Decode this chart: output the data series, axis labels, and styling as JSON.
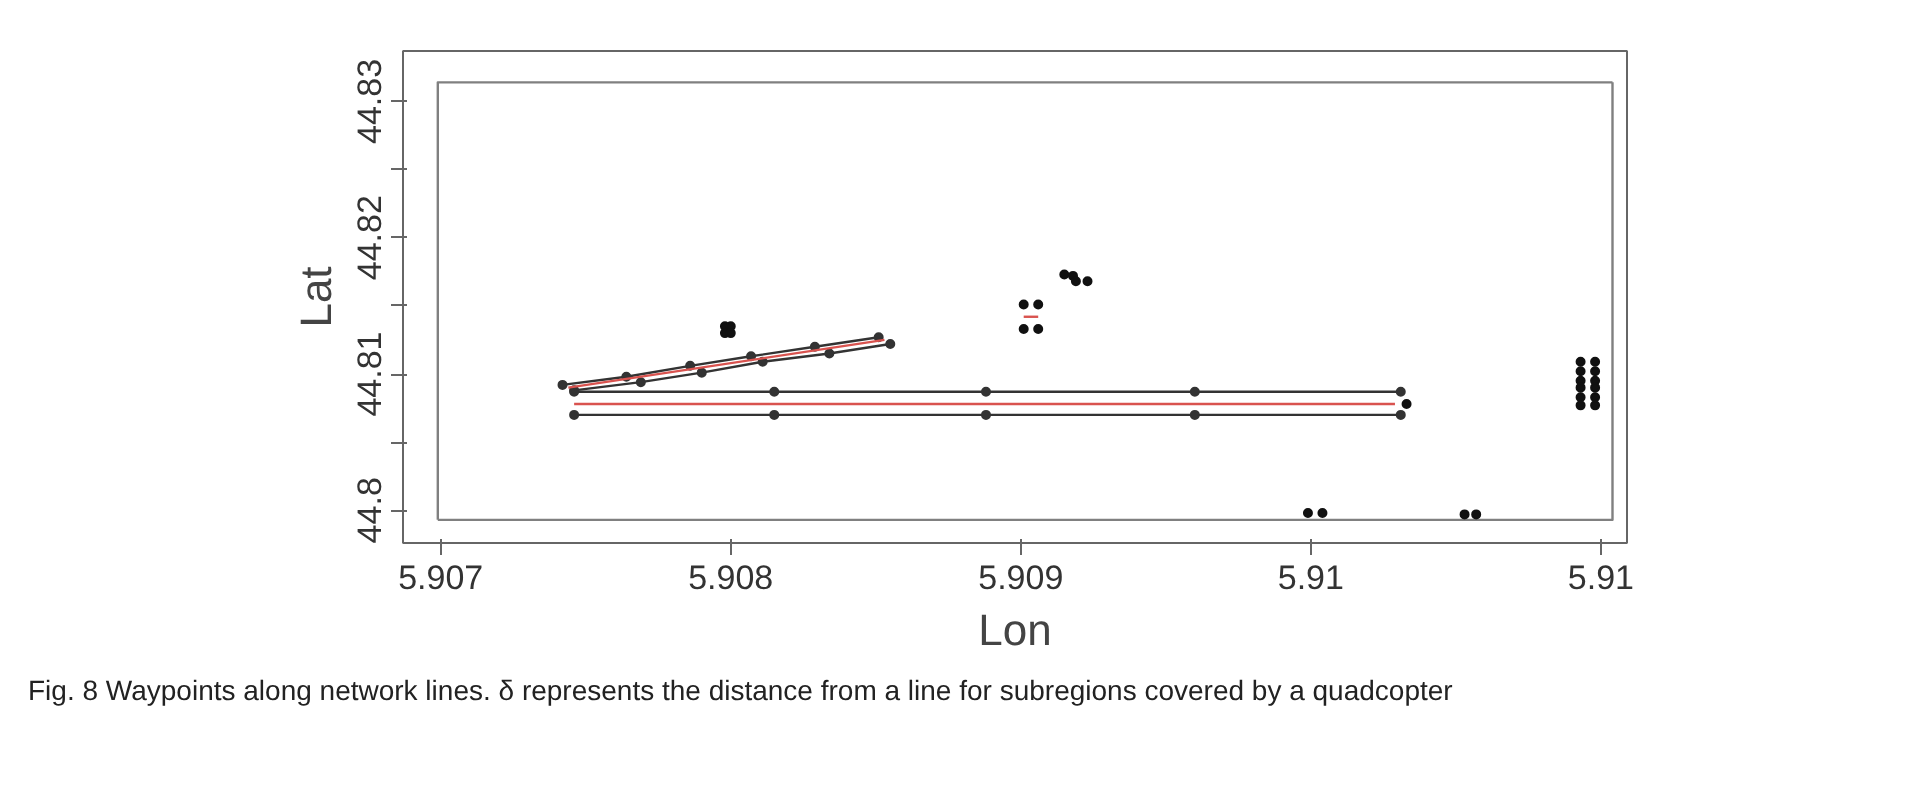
{
  "chart_data": {
    "type": "line",
    "xlabel": "Lon",
    "ylabel": "Lat",
    "xlim": [
      5.90687,
      5.91109
    ],
    "ylim": [
      44.7976,
      44.8337
    ],
    "xticks": [
      5.907,
      5.908,
      5.909,
      5.91,
      {
        "value": 5.911,
        "label": "5.91"
      }
    ],
    "yticks": [
      {
        "value": 44.8,
        "label": "44.8"
      },
      {
        "value": 44.805,
        "label": null
      },
      44.81,
      {
        "value": 44.815,
        "label": null
      },
      44.82,
      {
        "value": 44.825,
        "label": null
      },
      44.83
    ],
    "grid": false,
    "annotations": [
      "Fig. 8  Waypoints along network lines. δ represents the distance from a line for subregions covered by a quadcopter"
    ],
    "series": [
      {
        "color": "#808080",
        "marker": "none",
        "x": [
          5.90699,
          5.91104,
          5.91104
        ],
        "values": [
          44.7993,
          44.7993,
          44.8314
        ]
      },
      {
        "color": "#808080",
        "marker": "none",
        "x": [
          5.90699,
          5.90699,
          5.91104
        ],
        "values": [
          44.7993,
          44.8314,
          44.8314
        ]
      },
      {
        "color": "#333333",
        "marker": "circle",
        "x": [
          5.90746,
          5.90815,
          5.90888,
          5.9096,
          5.91031
        ],
        "values": [
          44.8087,
          44.8087,
          44.8087,
          44.8087,
          44.8087
        ]
      },
      {
        "color": "#333333",
        "marker": "circle",
        "x": [
          5.90746,
          5.90815,
          5.90888,
          5.9096,
          5.91031
        ],
        "values": [
          44.807,
          44.807,
          44.807,
          44.807,
          44.807
        ]
      },
      {
        "color": "#d9534f",
        "marker": "none",
        "x": [
          5.90746,
          5.91029
        ],
        "values": [
          44.8078,
          44.8078
        ]
      },
      {
        "color": "#333333",
        "marker": "circle",
        "x": [
          5.90742,
          5.90764,
          5.90786,
          5.90807,
          5.90829,
          5.90851
        ],
        "values": [
          44.8092,
          44.8098,
          44.8106,
          44.8113,
          44.812,
          44.8127
        ]
      },
      {
        "color": "#333333",
        "marker": "circle",
        "x": [
          5.90746,
          5.90769,
          5.9079,
          5.90811,
          5.90834,
          5.90855
        ],
        "values": [
          44.8088,
          44.8094,
          44.8101,
          44.8109,
          44.8115,
          44.8122
        ]
      },
      {
        "color": "#d9534f",
        "marker": "none",
        "x": [
          5.90744,
          5.90853
        ],
        "values": [
          44.809,
          44.8125
        ]
      },
      {
        "color": "#d9534f",
        "marker": "none",
        "x": [
          5.90901,
          5.90906
        ],
        "values": [
          44.8142,
          44.8142
        ]
      },
      {
        "type": "scatter",
        "color": "#111111",
        "marker": "circle",
        "x": [
          5.90798,
          5.908,
          5.90798,
          5.908,
          5.90901,
          5.90906,
          5.90901,
          5.90906,
          5.90915,
          5.90918,
          5.90919,
          5.90923,
          5.91033,
          5.90999,
          5.91004,
          5.91053,
          5.91057,
          5.91093,
          5.91093,
          5.91093,
          5.91093,
          5.91093,
          5.91093,
          5.91098,
          5.91098,
          5.91098,
          5.91098,
          5.91098,
          5.91098
        ],
        "values": [
          44.8135,
          44.8135,
          44.813,
          44.813,
          44.8151,
          44.8151,
          44.8133,
          44.8133,
          44.8173,
          44.8172,
          44.8168,
          44.8168,
          44.8078,
          44.7998,
          44.7998,
          44.7997,
          44.7997,
          44.8109,
          44.8102,
          44.8095,
          44.809,
          44.8083,
          44.8077,
          44.8109,
          44.8102,
          44.8095,
          44.809,
          44.8083,
          44.8077
        ]
      }
    ]
  }
}
